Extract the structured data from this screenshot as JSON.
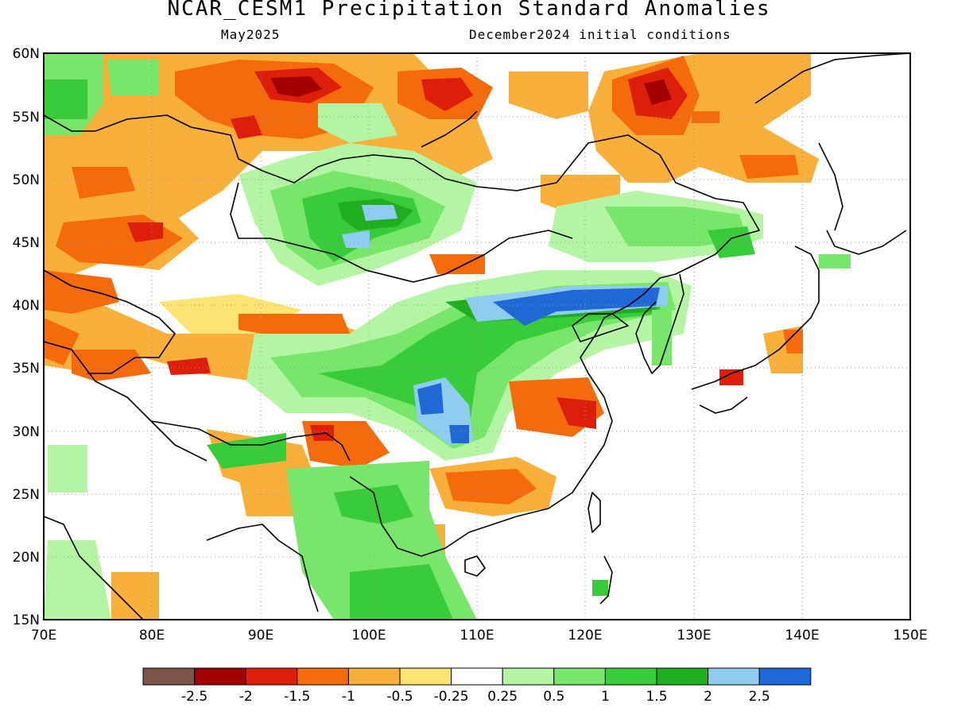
{
  "title": "NCAR_CESM1 Precipitation Standard Anomalies",
  "subtitle_left": "May2025",
  "subtitle_right": "December2024 initial conditions",
  "map": {
    "lon_range": [
      70,
      150
    ],
    "lat_range": [
      15,
      60
    ],
    "grid": "dotted",
    "x_ticks": [
      "70E",
      "80E",
      "90E",
      "100E",
      "110E",
      "120E",
      "130E",
      "140E",
      "150E"
    ],
    "y_ticks": [
      "15N",
      "20N",
      "25N",
      "30N",
      "35N",
      "40N",
      "45N",
      "50N",
      "55N",
      "60N"
    ]
  },
  "colorbar": {
    "colors": [
      "#7a5548",
      "#a30000",
      "#dc1e0a",
      "#f56a0a",
      "#f9b03a",
      "#fde473",
      "#ffffff",
      "#b4f5a4",
      "#78e66a",
      "#38cc3a",
      "#1fae1f",
      "#8fcdf0",
      "#1f68d6"
    ],
    "labels": [
      "-2.5",
      "-2",
      "-1.5",
      "-1",
      "-0.5",
      "-0.25",
      "0.25",
      "0.5",
      "1",
      "1.5",
      "2",
      "2.5"
    ]
  }
}
